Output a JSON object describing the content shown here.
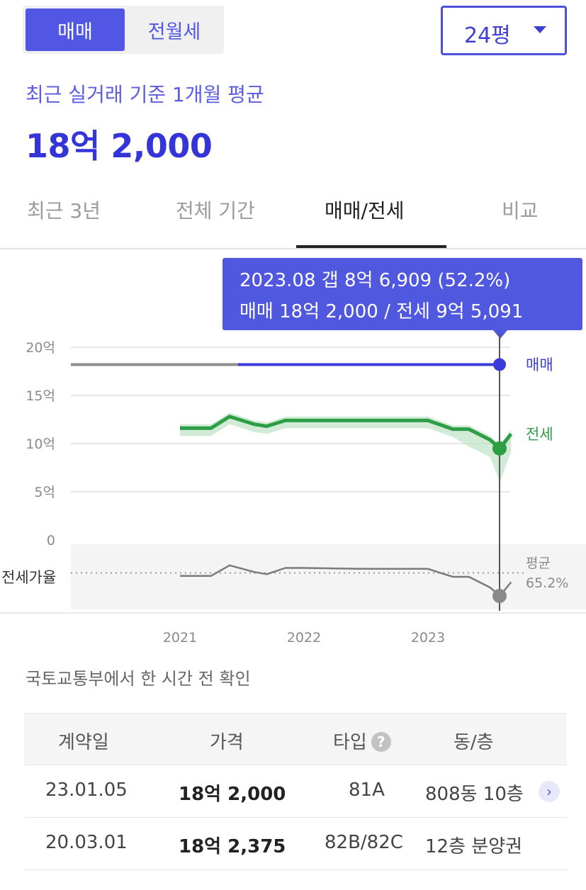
{
  "segment": {
    "active": "매매",
    "inactive": "전월세"
  },
  "size_select": {
    "value": "24평"
  },
  "summary": {
    "subtitle": "최근 실거래 기준 1개월 평균",
    "price": "18억 2,000"
  },
  "tabs": [
    {
      "label": "최근 3년",
      "active": false
    },
    {
      "label": "전체 기간",
      "active": false
    },
    {
      "label": "매매/전세",
      "active": true
    },
    {
      "label": "비교",
      "active": false
    }
  ],
  "tooltip": {
    "line1": "2023.08  갭 8억 6,909 (52.2%)",
    "line2": "매매 18억 2,000 / 전세 9억 5,091"
  },
  "chart_data": {
    "type": "line",
    "y_ticks": [
      "20억",
      "15억",
      "10억",
      "5억",
      "0"
    ],
    "ylim": [
      0,
      20
    ],
    "x_ticks": [
      "2021",
      "2022",
      "2023"
    ],
    "series": [
      {
        "name": "매매",
        "color": "#3b3bd9",
        "values": [
          18.2,
          18.2
        ]
      },
      {
        "name": "전세",
        "color": "#2e9e46",
        "points": [
          [
            2021.0,
            11.6
          ],
          [
            2021.25,
            11.6
          ],
          [
            2021.4,
            12.8
          ],
          [
            2021.6,
            12.0
          ],
          [
            2021.7,
            11.8
          ],
          [
            2021.85,
            12.4
          ],
          [
            2022.0,
            12.4
          ],
          [
            2022.5,
            12.4
          ],
          [
            2023.0,
            12.4
          ],
          [
            2023.2,
            11.5
          ],
          [
            2023.33,
            11.5
          ],
          [
            2023.5,
            10.4
          ],
          [
            2023.58,
            9.5
          ],
          [
            2023.67,
            11.0
          ]
        ]
      }
    ],
    "ratio": {
      "label": "전세가율",
      "avg_label_1": "평균",
      "avg_label_2": "65.2%",
      "avg_value": 65.2,
      "points": [
        [
          2021.0,
          63.5
        ],
        [
          2021.25,
          63.5
        ],
        [
          2021.4,
          69.5
        ],
        [
          2021.6,
          65.7
        ],
        [
          2021.7,
          64.5
        ],
        [
          2021.85,
          68.0
        ],
        [
          2022.0,
          68.0
        ],
        [
          2022.5,
          67.5
        ],
        [
          2023.0,
          67.5
        ],
        [
          2023.2,
          63.0
        ],
        [
          2023.33,
          63.0
        ],
        [
          2023.5,
          57.0
        ],
        [
          2023.58,
          52.2
        ],
        [
          2023.67,
          60.0
        ]
      ]
    },
    "highlight_x": "2023.08"
  },
  "series_labels": {
    "sale": "매매",
    "jeonse": "전세"
  },
  "source_note": "국토교통부에서 한 시간 전 확인",
  "table": {
    "headers": [
      "계약일",
      "가격",
      "타입",
      "동/층"
    ],
    "type_help_icon": "?",
    "rows": [
      {
        "date": "23.01.05",
        "price": "18억 2,000",
        "type": "81A",
        "floor": "808동 10층",
        "has_detail": true
      },
      {
        "date": "20.03.01",
        "price": "18억 2,375",
        "type": "82B/82C",
        "floor": "12층 분양권",
        "has_detail": false
      }
    ]
  }
}
